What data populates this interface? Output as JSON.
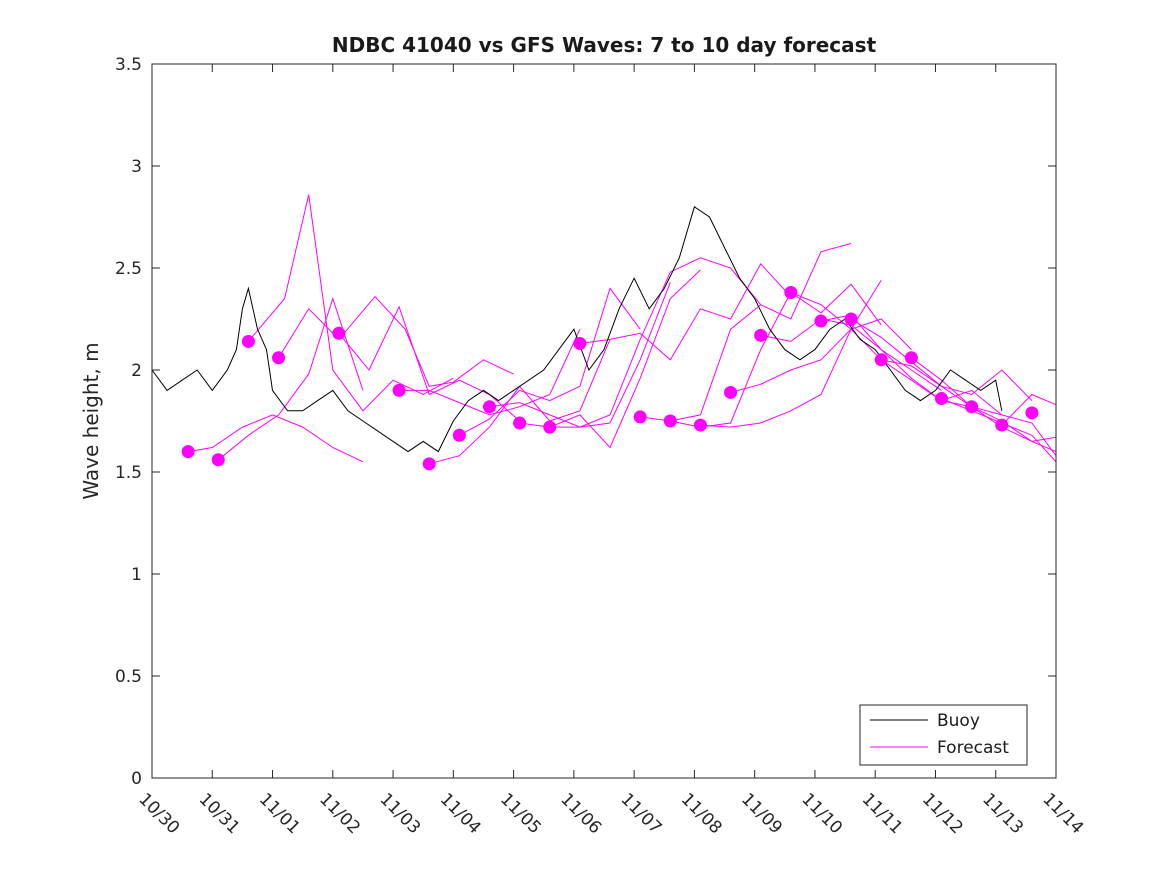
{
  "chart_data": {
    "type": "line",
    "title": "NDBC 41040 vs GFS Waves: 7 to 10 day forecast",
    "xlabel": "",
    "ylabel": "Wave height, m",
    "xlim": [
      0,
      15
    ],
    "ylim": [
      0,
      3.5
    ],
    "x_tick_values": [
      0,
      1,
      2,
      3,
      4,
      5,
      6,
      7,
      8,
      9,
      10,
      11,
      12,
      13,
      14,
      15
    ],
    "x_tick_labels": [
      "10/30",
      "10/31",
      "11/01",
      "11/02",
      "11/03",
      "11/04",
      "11/05",
      "11/06",
      "11/07",
      "11/08",
      "11/09",
      "11/10",
      "11/11",
      "11/12",
      "11/13",
      "11/14"
    ],
    "y_tick_values": [
      0,
      0.5,
      1,
      1.5,
      2,
      2.5,
      3,
      3.5
    ],
    "y_tick_labels": [
      "0",
      "0.5",
      "1",
      "1.5",
      "2",
      "2.5",
      "3",
      "3.5"
    ],
    "legend": {
      "position": "bottom-right",
      "entries": [
        "Buoy",
        "Forecast"
      ]
    },
    "colors": {
      "buoy": "#000000",
      "forecast": "#ff00ff"
    },
    "buoy": {
      "name": "Buoy",
      "x": [
        0,
        0.25,
        0.5,
        0.75,
        1,
        1.25,
        1.4,
        1.5,
        1.6,
        1.75,
        1.9,
        2,
        2.25,
        2.5,
        2.75,
        3,
        3.25,
        3.5,
        3.75,
        4,
        4.25,
        4.5,
        4.75,
        5,
        5.25,
        5.5,
        5.75,
        6,
        6.25,
        6.5,
        6.75,
        7,
        7.25,
        7.5,
        7.75,
        8,
        8.25,
        8.5,
        8.75,
        9,
        9.25,
        9.5,
        9.75,
        10,
        10.25,
        10.5,
        10.75,
        11,
        11.25,
        11.5,
        11.75,
        12,
        12.25,
        12.5,
        12.75,
        13,
        13.25,
        13.5,
        13.75,
        14,
        14.1
      ],
      "y": [
        2.0,
        1.9,
        1.95,
        2.0,
        1.9,
        2.0,
        2.1,
        2.3,
        2.4,
        2.2,
        2.1,
        1.9,
        1.8,
        1.8,
        1.85,
        1.9,
        1.8,
        1.75,
        1.7,
        1.65,
        1.6,
        1.65,
        1.6,
        1.75,
        1.85,
        1.9,
        1.85,
        1.9,
        1.95,
        2.0,
        2.1,
        2.2,
        2.0,
        2.1,
        2.3,
        2.45,
        2.3,
        2.4,
        2.55,
        2.8,
        2.75,
        2.6,
        2.45,
        2.35,
        2.2,
        2.1,
        2.05,
        2.1,
        2.2,
        2.25,
        2.15,
        2.1,
        2.0,
        1.9,
        1.85,
        1.9,
        2.0,
        1.95,
        1.9,
        1.95,
        1.8
      ]
    },
    "forecast_series": [
      {
        "x": [
          0.6,
          1.0,
          1.5,
          2.0,
          2.5,
          3.0,
          3.5
        ],
        "y": [
          1.6,
          1.62,
          1.72,
          1.78,
          1.72,
          1.62,
          1.55
        ]
      },
      {
        "x": [
          1.1,
          1.6,
          2.1,
          2.6,
          3.0,
          3.5
        ],
        "y": [
          1.56,
          1.68,
          1.78,
          1.98,
          2.35,
          1.9
        ]
      },
      {
        "x": [
          1.6,
          2.2,
          2.6,
          3.0,
          3.5,
          4.0,
          4.5,
          5.0
        ],
        "y": [
          2.14,
          2.35,
          2.86,
          2.0,
          1.8,
          1.95,
          1.88,
          1.96
        ]
      },
      {
        "x": [
          2.1,
          2.6,
          3.1,
          3.7,
          4.2,
          4.6,
          5.0,
          5.5,
          6.0
        ],
        "y": [
          2.06,
          2.3,
          2.15,
          2.36,
          2.2,
          1.92,
          1.94,
          2.05,
          1.98
        ]
      },
      {
        "x": [
          3.1,
          3.6,
          4.1,
          4.6,
          5.1,
          5.6,
          6.1
        ],
        "y": [
          2.18,
          2.0,
          2.31,
          1.88,
          1.95,
          1.88,
          1.75
        ]
      },
      {
        "x": [
          4.1,
          4.6,
          5.1,
          5.6,
          6.1,
          6.6,
          7.1
        ],
        "y": [
          1.9,
          1.9,
          1.84,
          1.78,
          1.82,
          1.88,
          2.2
        ]
      },
      {
        "x": [
          4.6,
          5.1,
          5.6,
          6.1,
          6.6,
          7.1,
          7.6
        ],
        "y": [
          1.54,
          1.58,
          1.72,
          1.92,
          1.75,
          1.8,
          2.15
        ]
      },
      {
        "x": [
          5.1,
          5.6,
          6.1,
          6.6,
          7.1,
          7.6,
          8.1
        ],
        "y": [
          1.68,
          1.76,
          1.9,
          1.85,
          1.92,
          2.4,
          2.2
        ]
      },
      {
        "x": [
          5.6,
          6.1,
          6.6,
          7.1,
          7.6,
          8.1,
          8.6
        ],
        "y": [
          1.82,
          1.84,
          1.78,
          1.72,
          1.74,
          2.05,
          2.43
        ]
      },
      {
        "x": [
          6.1,
          6.6,
          7.1,
          7.6,
          8.1,
          8.6,
          9.1
        ],
        "y": [
          1.74,
          1.72,
          1.78,
          1.62,
          1.96,
          2.35,
          2.49
        ]
      },
      {
        "x": [
          6.6,
          7.1,
          7.6,
          8.1,
          8.6,
          9.1,
          9.6,
          10.1
        ],
        "y": [
          1.72,
          1.72,
          1.78,
          2.15,
          2.48,
          2.55,
          2.5,
          2.32
        ]
      },
      {
        "x": [
          7.1,
          7.6,
          8.1,
          8.6,
          9.1,
          9.6,
          10.1,
          10.6
        ],
        "y": [
          2.13,
          2.15,
          2.18,
          2.05,
          2.3,
          2.25,
          2.52,
          2.36
        ]
      },
      {
        "x": [
          8.1,
          8.6,
          9.1,
          9.6,
          10.1,
          10.6,
          11.1,
          11.6
        ],
        "y": [
          1.77,
          1.75,
          1.78,
          2.2,
          2.32,
          2.25,
          2.58,
          2.62
        ]
      },
      {
        "x": [
          8.6,
          9.1,
          9.6,
          10.1,
          10.6,
          11.1,
          11.6,
          12.1
        ],
        "y": [
          1.75,
          1.72,
          1.74,
          2.1,
          2.38,
          2.28,
          2.42,
          2.22
        ]
      },
      {
        "x": [
          9.1,
          9.6,
          10.1,
          10.6,
          11.1,
          11.6,
          12.1
        ],
        "y": [
          1.73,
          1.72,
          1.74,
          1.8,
          1.88,
          2.2,
          2.44
        ]
      },
      {
        "x": [
          9.6,
          10.1,
          10.6,
          11.1,
          11.6,
          12.1,
          12.6
        ],
        "y": [
          1.89,
          1.93,
          2.0,
          2.05,
          2.2,
          2.25,
          2.1
        ]
      },
      {
        "x": [
          10.1,
          10.6,
          11.1,
          11.6,
          12.1,
          12.6,
          13.1
        ],
        "y": [
          2.17,
          2.14,
          2.25,
          2.22,
          2.1,
          2.0,
          1.9
        ]
      },
      {
        "x": [
          10.6,
          11.1,
          11.6,
          12.1,
          12.6,
          13.1,
          13.6
        ],
        "y": [
          2.38,
          2.32,
          2.2,
          2.05,
          1.95,
          1.85,
          1.82
        ]
      },
      {
        "x": [
          11.1,
          11.6,
          12.1,
          12.6,
          13.1,
          13.6,
          14.1
        ],
        "y": [
          2.24,
          2.27,
          2.1,
          1.96,
          1.85,
          1.9,
          1.78
        ]
      },
      {
        "x": [
          11.6,
          12.1,
          12.6,
          13.1,
          13.6,
          14.1,
          14.6
        ],
        "y": [
          2.25,
          2.16,
          2.04,
          1.92,
          1.88,
          2.0,
          1.85
        ]
      },
      {
        "x": [
          12.1,
          12.6,
          13.1,
          13.6,
          14.1,
          14.6,
          15.0
        ],
        "y": [
          2.05,
          2.02,
          1.92,
          1.82,
          1.78,
          1.74,
          1.58
        ]
      },
      {
        "x": [
          12.6,
          13.1,
          13.6,
          14.1,
          14.6,
          15.0
        ],
        "y": [
          2.06,
          1.95,
          1.82,
          1.75,
          1.65,
          1.6
        ]
      },
      {
        "x": [
          13.1,
          13.6,
          14.1,
          14.6,
          15.0
        ],
        "y": [
          1.86,
          1.8,
          1.74,
          1.68,
          1.55
        ]
      },
      {
        "x": [
          13.6,
          14.1,
          14.6,
          15.0
        ],
        "y": [
          1.82,
          1.72,
          1.65,
          1.67
        ]
      },
      {
        "x": [
          14.1,
          14.6,
          15.0
        ],
        "y": [
          1.73,
          1.88,
          1.83
        ]
      }
    ],
    "forecast_points": {
      "name": "Forecast",
      "x": [
        0.6,
        1.1,
        1.6,
        2.1,
        3.1,
        4.1,
        4.6,
        5.1,
        5.6,
        6.1,
        6.6,
        7.1,
        8.1,
        8.6,
        9.1,
        9.6,
        10.1,
        10.6,
        11.1,
        11.6,
        12.1,
        12.6,
        13.1,
        13.6,
        14.1,
        14.6
      ],
      "y": [
        1.6,
        1.56,
        2.14,
        2.06,
        2.18,
        1.9,
        1.54,
        1.68,
        1.82,
        1.74,
        1.72,
        2.13,
        1.77,
        1.75,
        1.73,
        1.89,
        2.17,
        2.38,
        2.24,
        2.25,
        2.05,
        2.06,
        1.86,
        1.82,
        1.73,
        1.79
      ]
    }
  }
}
